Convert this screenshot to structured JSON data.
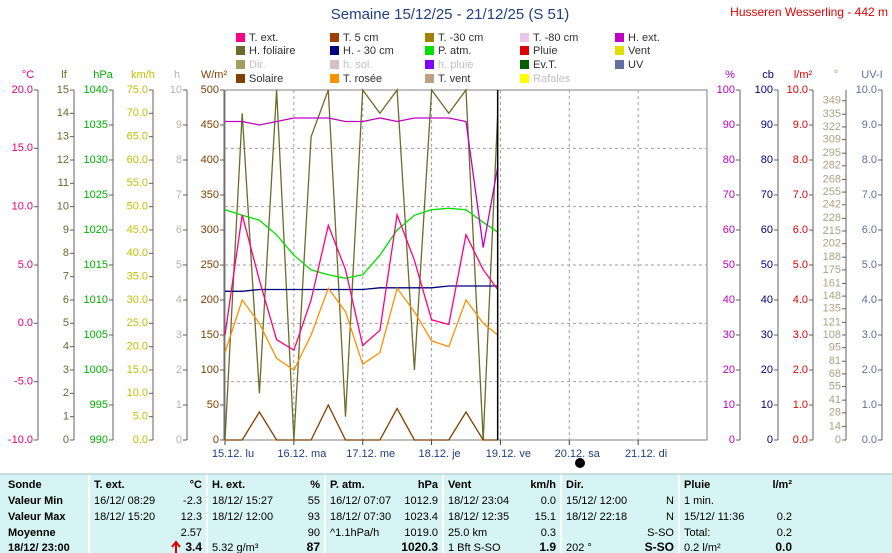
{
  "header": {
    "title": "Semaine 15/12/25 - 21/12/25 (S 51)",
    "station": "Husseren Wesserling - 442 m"
  },
  "chart_data": {
    "type": "line",
    "legend": [
      {
        "name": "T. ext.",
        "color": "#ff0080"
      },
      {
        "name": "T. 5 cm",
        "color": "#a04000"
      },
      {
        "name": "T. -30 cm",
        "color": "#a08000"
      },
      {
        "name": "T. -80 cm",
        "color": "#e8c8e8"
      },
      {
        "name": "H. ext.",
        "color": "#c000c0"
      },
      {
        "name": "H. foliaire",
        "color": "#6b6b2a"
      },
      {
        "name": "H. - 30 cm",
        "color": "#000080"
      },
      {
        "name": "P. atm.",
        "color": "#00e000"
      },
      {
        "name": "Pluie",
        "color": "#e00000"
      },
      {
        "name": "Vent",
        "color": "#e0e000"
      },
      {
        "name": "Dir.",
        "color": "#a0a060"
      },
      {
        "name": "h. sol.",
        "color": "#d8c0c0"
      },
      {
        "name": "h. pluie",
        "color": "#8000ff"
      },
      {
        "name": "Ev.T.",
        "color": "#006000"
      },
      {
        "name": "UV",
        "color": "#6070a0"
      },
      {
        "name": "Solaire",
        "color": "#804000"
      },
      {
        "name": "T. rosée",
        "color": "#ff9000"
      },
      {
        "name": "T. vent",
        "color": "#c0a080"
      },
      {
        "name": "Rafales",
        "color": "#ffff00"
      }
    ],
    "axes": [
      {
        "label": "°C",
        "color": "#e0007a",
        "lim": [
          -10,
          20
        ],
        "ticks": [
          {
            "value": -10,
            "label": "-10.0"
          },
          {
            "value": -5,
            "label": "-5.0"
          },
          {
            "value": 0,
            "label": "0.0"
          },
          {
            "value": 5,
            "label": "5.0"
          },
          {
            "value": 10,
            "label": "10.0"
          },
          {
            "value": 15,
            "label": "15.0"
          },
          {
            "value": 20,
            "label": "20.0"
          }
        ]
      },
      {
        "label": "lf",
        "color": "#6b6b2a",
        "lim": [
          0,
          15
        ],
        "ticks": [
          0,
          1,
          2,
          3,
          4,
          5,
          6,
          7,
          8,
          9,
          10,
          11,
          12,
          13,
          14,
          15
        ]
      },
      {
        "label": "hPa",
        "color": "#00b000",
        "lim": [
          990,
          1040
        ],
        "ticks": [
          990,
          995,
          1000,
          1005,
          1010,
          1015,
          1020,
          1025,
          1030,
          1035,
          1040
        ]
      },
      {
        "label": "km/h",
        "color": "#c0c000",
        "lim": [
          0,
          75
        ],
        "ticks": [
          {
            "value": 0,
            "label": "0.0"
          },
          {
            "value": 5,
            "label": "5.0"
          },
          {
            "value": 10,
            "label": "10.0"
          },
          {
            "value": 15,
            "label": "15.0"
          },
          {
            "value": 20,
            "label": "20.0"
          },
          {
            "value": 25,
            "label": "25.0"
          },
          {
            "value": 30,
            "label": "30.0"
          },
          {
            "value": 35,
            "label": "35.0"
          },
          {
            "value": 40,
            "label": "40.0"
          },
          {
            "value": 45,
            "label": "45.0"
          },
          {
            "value": 50,
            "label": "50.0"
          },
          {
            "value": 55,
            "label": "55.0"
          },
          {
            "value": 60,
            "label": "60.0"
          },
          {
            "value": 65,
            "label": "65.0"
          },
          {
            "value": 70,
            "label": "70.0"
          },
          {
            "value": 75,
            "label": "75.0"
          }
        ]
      },
      {
        "label": "h",
        "color": "#c0b0b0",
        "lim": [
          0,
          10
        ],
        "ticks": [
          0,
          1,
          2,
          3,
          4,
          5,
          6,
          7,
          8,
          9,
          10
        ]
      },
      {
        "label": "W/m²",
        "color": "#804000",
        "lim": [
          0,
          500
        ],
        "ticks": [
          0,
          50,
          100,
          150,
          200,
          250,
          300,
          350,
          400,
          450,
          500
        ]
      },
      {
        "label": "%",
        "color": "#c000c0",
        "lim": [
          0,
          100
        ],
        "ticks": [
          0,
          10,
          20,
          30,
          40,
          50,
          60,
          70,
          80,
          90,
          100
        ]
      },
      {
        "label": "cb",
        "color": "#000080",
        "lim": [
          0,
          100
        ],
        "ticks": [
          0,
          10,
          20,
          30,
          40,
          50,
          60,
          70,
          80,
          90,
          100
        ]
      },
      {
        "label": "l/m²",
        "color": "#e00000",
        "lim": [
          0,
          10
        ],
        "ticks": [
          {
            "value": 0,
            "label": "0.0"
          },
          {
            "value": 1,
            "label": "1.0"
          },
          {
            "value": 2,
            "label": "2.0"
          },
          {
            "value": 3,
            "label": "3.0"
          },
          {
            "value": 4,
            "label": "4.0"
          },
          {
            "value": 5,
            "label": "5.0"
          },
          {
            "value": 6,
            "label": "6.0"
          },
          {
            "value": 7,
            "label": "7.0"
          },
          {
            "value": 8,
            "label": "8.0"
          },
          {
            "value": 9,
            "label": "9.0"
          },
          {
            "value": 10,
            "label": "10.0"
          }
        ]
      },
      {
        "label": "°",
        "color": "#b0a080",
        "lim": [
          0,
          360
        ],
        "ticks": [
          0,
          14,
          28,
          41,
          55,
          68,
          81,
          95,
          108,
          121,
          135,
          148,
          161,
          175,
          188,
          202,
          215,
          228,
          242,
          255,
          268,
          282,
          295,
          309,
          322,
          335,
          349
        ]
      },
      {
        "label": "UV-I",
        "color": "#6070a0",
        "lim": [
          0,
          10
        ],
        "ticks": [
          {
            "value": 0,
            "label": "0.0"
          },
          {
            "value": 1,
            "label": "1.0"
          },
          {
            "value": 2,
            "label": "2.0"
          },
          {
            "value": 3,
            "label": "3.0"
          },
          {
            "value": 4,
            "label": "4.0"
          },
          {
            "value": 5,
            "label": "5.0"
          },
          {
            "value": 6,
            "label": "6.0"
          },
          {
            "value": 7,
            "label": "7.0"
          },
          {
            "value": 8,
            "label": "8.0"
          },
          {
            "value": 9,
            "label": "9.0"
          },
          {
            "value": 10,
            "label": "10.0"
          }
        ]
      }
    ],
    "xlim": [
      0,
      7
    ],
    "xticks": [
      {
        "value": 0,
        "label": "15.12. lu"
      },
      {
        "value": 1,
        "label": "16.12. ma"
      },
      {
        "value": 2,
        "label": "17.12. me"
      },
      {
        "value": 3,
        "label": "18.12. je"
      },
      {
        "value": 4,
        "label": "19.12. ve"
      },
      {
        "value": 5,
        "label": "20.12. sa"
      },
      {
        "value": 6,
        "label": "21.12. di"
      }
    ],
    "grid": true,
    "x": [
      0,
      0.25,
      0.5,
      0.75,
      1,
      1.25,
      1.5,
      1.75,
      2,
      2.25,
      2.5,
      2.75,
      3,
      3.25,
      3.5,
      3.75,
      3.96
    ],
    "series": [
      {
        "name": "H. foliaire",
        "color": "#6b6b2a",
        "axis": 1,
        "values": [
          0,
          14,
          2,
          15,
          0,
          13,
          15,
          1,
          15,
          14,
          15,
          3,
          15,
          14,
          15,
          0,
          14
        ]
      },
      {
        "name": "Solaire",
        "color": "#804000",
        "axis": 5,
        "values": [
          0,
          0,
          40,
          0,
          0,
          0,
          50,
          0,
          0,
          0,
          45,
          0,
          0,
          0,
          40,
          0,
          0
        ]
      },
      {
        "name": "P. atm.",
        "color": "#00e000",
        "axis": 2,
        "values": [
          1022.9,
          1022.1,
          1021.4,
          1019.3,
          1016.4,
          1014.3,
          1013.6,
          1013.1,
          1013.6,
          1016.4,
          1020,
          1022.1,
          1022.9,
          1023.1,
          1022.9,
          1021.1,
          1019.7
        ]
      },
      {
        "name": "H. - 30 cm",
        "color": "#000080",
        "axis": 7,
        "values": [
          42.5,
          42.5,
          43,
          43,
          43,
          43,
          43,
          43,
          43,
          43.5,
          43.5,
          43.5,
          43.5,
          44,
          44,
          44,
          44
        ]
      },
      {
        "name": "T. rosée",
        "color": "#ff9000",
        "axis": 0,
        "values": [
          -2.5,
          2,
          0,
          -3,
          -4,
          -1,
          3,
          1,
          -3.5,
          -2.5,
          3,
          1,
          -1.5,
          -2,
          2,
          0,
          -1
        ]
      },
      {
        "name": "T. ext.",
        "color": "#ff0080",
        "axis": 0,
        "values": [
          -1,
          9.3,
          3.7,
          -1.4,
          -2.3,
          2,
          8.4,
          4.6,
          -1.9,
          -0.6,
          9.3,
          5.4,
          0.3,
          -0.1,
          7.6,
          4.6,
          2.9
        ]
      },
      {
        "name": "H. ext.",
        "color": "#c000c0",
        "axis": 6,
        "values": [
          91,
          91,
          90,
          91,
          92,
          92,
          92,
          91,
          91,
          92,
          91,
          92,
          92,
          92,
          91,
          55,
          78
        ]
      }
    ]
  },
  "table": {
    "columns": [
      {
        "name": "T. ext.",
        "unit": "°C"
      },
      {
        "name": "H. ext.",
        "unit": "%"
      },
      {
        "name": "P. atm.",
        "unit": "hPa"
      },
      {
        "name": "Vent",
        "unit": "km/h"
      },
      {
        "name": "Dir.",
        "unit": null
      },
      {
        "name": "Pluie",
        "unit": "l/m²"
      }
    ],
    "corner": "Sonde",
    "rows": [
      {
        "label": "Valeur Min",
        "cells": [
          [
            "16/12/ 08:29",
            "-2.3"
          ],
          [
            "18/12/ 15:27",
            "55"
          ],
          [
            "16/12/ 07:07",
            "1012.9"
          ],
          [
            "18/12/ 23:04",
            "0.0"
          ],
          [
            "15/12/ 12:00",
            "N"
          ],
          [
            "1 min.",
            null
          ]
        ]
      },
      {
        "label": "Valeur Max",
        "cells": [
          [
            "18/12/ 15:20",
            "12.3"
          ],
          [
            "18/12/ 12:00",
            "93"
          ],
          [
            "18/12/ 07:30",
            "1023.4"
          ],
          [
            "18/12/ 12:35",
            "15.1"
          ],
          [
            "18/12/ 22:18",
            "N"
          ],
          [
            "15/12/ 11:36",
            "0.2"
          ]
        ]
      },
      {
        "label": "Moyenne",
        "cells": [
          [
            null,
            "2.57"
          ],
          [
            null,
            "90"
          ],
          [
            "^1.1hPa/h",
            "1019.0"
          ],
          [
            "25.0 km",
            "0.3"
          ],
          [
            null,
            "S-SO"
          ],
          [
            "Total:",
            "0.2"
          ]
        ]
      },
      {
        "label": "18/12/ 23:00",
        "cells": [
          [
            null,
            "3.4"
          ],
          [
            "5.32 g/m³",
            "87"
          ],
          [
            null,
            "1020.3"
          ],
          [
            "1 Bft S-SO",
            "1.9"
          ],
          [
            "202 °",
            "S-SO"
          ],
          [
            "0.2 l/m²",
            "0.0"
          ]
        ]
      }
    ]
  }
}
